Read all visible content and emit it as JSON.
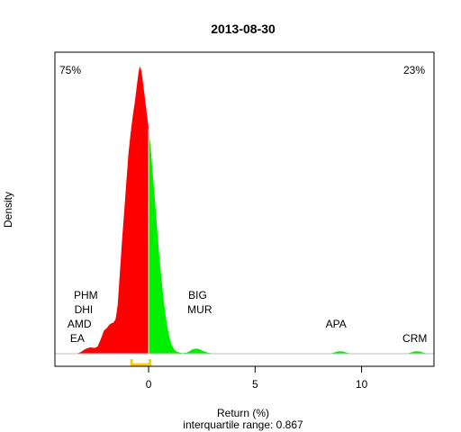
{
  "chart_data": {
    "type": "area",
    "title": "2013-08-30",
    "xlabel": "Return (%)",
    "ylabel": "Density",
    "subtitle": "interquartile range: 0.867",
    "xlim": [
      -4.4,
      13.4
    ],
    "ylim": [
      0,
      1.0
    ],
    "x_ticks": [
      0,
      5,
      10
    ],
    "x_tick_labels": [
      "0",
      "5",
      "10"
    ],
    "split_x": 0,
    "negative_share_label": "75%",
    "positive_share_label": "23%",
    "iqr": {
      "q1": -0.8,
      "q3": 0.067
    },
    "density_points": [
      [
        -3.4,
        0.0
      ],
      [
        -3.2,
        0.005
      ],
      [
        -3.0,
        0.015
      ],
      [
        -2.85,
        0.02
      ],
      [
        -2.7,
        0.022
      ],
      [
        -2.55,
        0.02
      ],
      [
        -2.4,
        0.024
      ],
      [
        -2.25,
        0.05
      ],
      [
        -2.1,
        0.08
      ],
      [
        -1.95,
        0.09
      ],
      [
        -1.85,
        0.1
      ],
      [
        -1.75,
        0.105
      ],
      [
        -1.65,
        0.108
      ],
      [
        -1.55,
        0.12
      ],
      [
        -1.45,
        0.17
      ],
      [
        -1.35,
        0.28
      ],
      [
        -1.25,
        0.39
      ],
      [
        -1.15,
        0.49
      ],
      [
        -1.05,
        0.59
      ],
      [
        -0.95,
        0.69
      ],
      [
        -0.85,
        0.76
      ],
      [
        -0.75,
        0.82
      ],
      [
        -0.65,
        0.87
      ],
      [
        -0.55,
        0.93
      ],
      [
        -0.48,
        0.97
      ],
      [
        -0.42,
        0.995
      ],
      [
        -0.36,
        0.985
      ],
      [
        -0.3,
        0.96
      ],
      [
        -0.2,
        0.9
      ],
      [
        -0.1,
        0.84
      ],
      [
        0.0,
        0.78
      ],
      [
        0.1,
        0.71
      ],
      [
        0.2,
        0.62
      ],
      [
        0.3,
        0.53
      ],
      [
        0.4,
        0.43
      ],
      [
        0.5,
        0.34
      ],
      [
        0.6,
        0.26
      ],
      [
        0.7,
        0.19
      ],
      [
        0.8,
        0.13
      ],
      [
        0.9,
        0.085
      ],
      [
        1.0,
        0.05
      ],
      [
        1.1,
        0.028
      ],
      [
        1.2,
        0.015
      ],
      [
        1.3,
        0.008
      ],
      [
        1.45,
        0.004
      ],
      [
        1.6,
        0.002
      ],
      [
        1.8,
        0.004
      ],
      [
        1.95,
        0.01
      ],
      [
        2.1,
        0.016
      ],
      [
        2.25,
        0.018
      ],
      [
        2.4,
        0.015
      ],
      [
        2.6,
        0.008
      ],
      [
        2.8,
        0.003
      ],
      [
        3.0,
        0.001
      ],
      [
        3.3,
        0.0
      ],
      [
        8.5,
        0.0
      ],
      [
        8.7,
        0.004
      ],
      [
        8.9,
        0.008
      ],
      [
        9.1,
        0.008
      ],
      [
        9.3,
        0.004
      ],
      [
        9.5,
        0.0
      ],
      [
        12.1,
        0.0
      ],
      [
        12.3,
        0.004
      ],
      [
        12.5,
        0.008
      ],
      [
        12.7,
        0.008
      ],
      [
        12.9,
        0.004
      ],
      [
        13.1,
        0.0
      ]
    ],
    "annotations": [
      {
        "label": "PHM",
        "x": -2.95,
        "y": 0.19
      },
      {
        "label": "DHI",
        "x": -3.05,
        "y": 0.14
      },
      {
        "label": "AMD",
        "x": -3.25,
        "y": 0.09
      },
      {
        "label": "EA",
        "x": -3.35,
        "y": 0.04
      },
      {
        "label": "BIG",
        "x": 2.3,
        "y": 0.19
      },
      {
        "label": "MUR",
        "x": 2.4,
        "y": 0.14
      },
      {
        "label": "APA",
        "x": 8.8,
        "y": 0.09
      },
      {
        "label": "CRM",
        "x": 12.5,
        "y": 0.04
      }
    ],
    "colors": {
      "negative": "#ff0000",
      "positive": "#00ee00",
      "iqr_bracket": "#ffcc00",
      "axis": "#000000",
      "baseline": "#bebebe",
      "negative_label": "#ff0000",
      "positive_label": "#008800"
    },
    "grid": false,
    "legend": "none"
  }
}
